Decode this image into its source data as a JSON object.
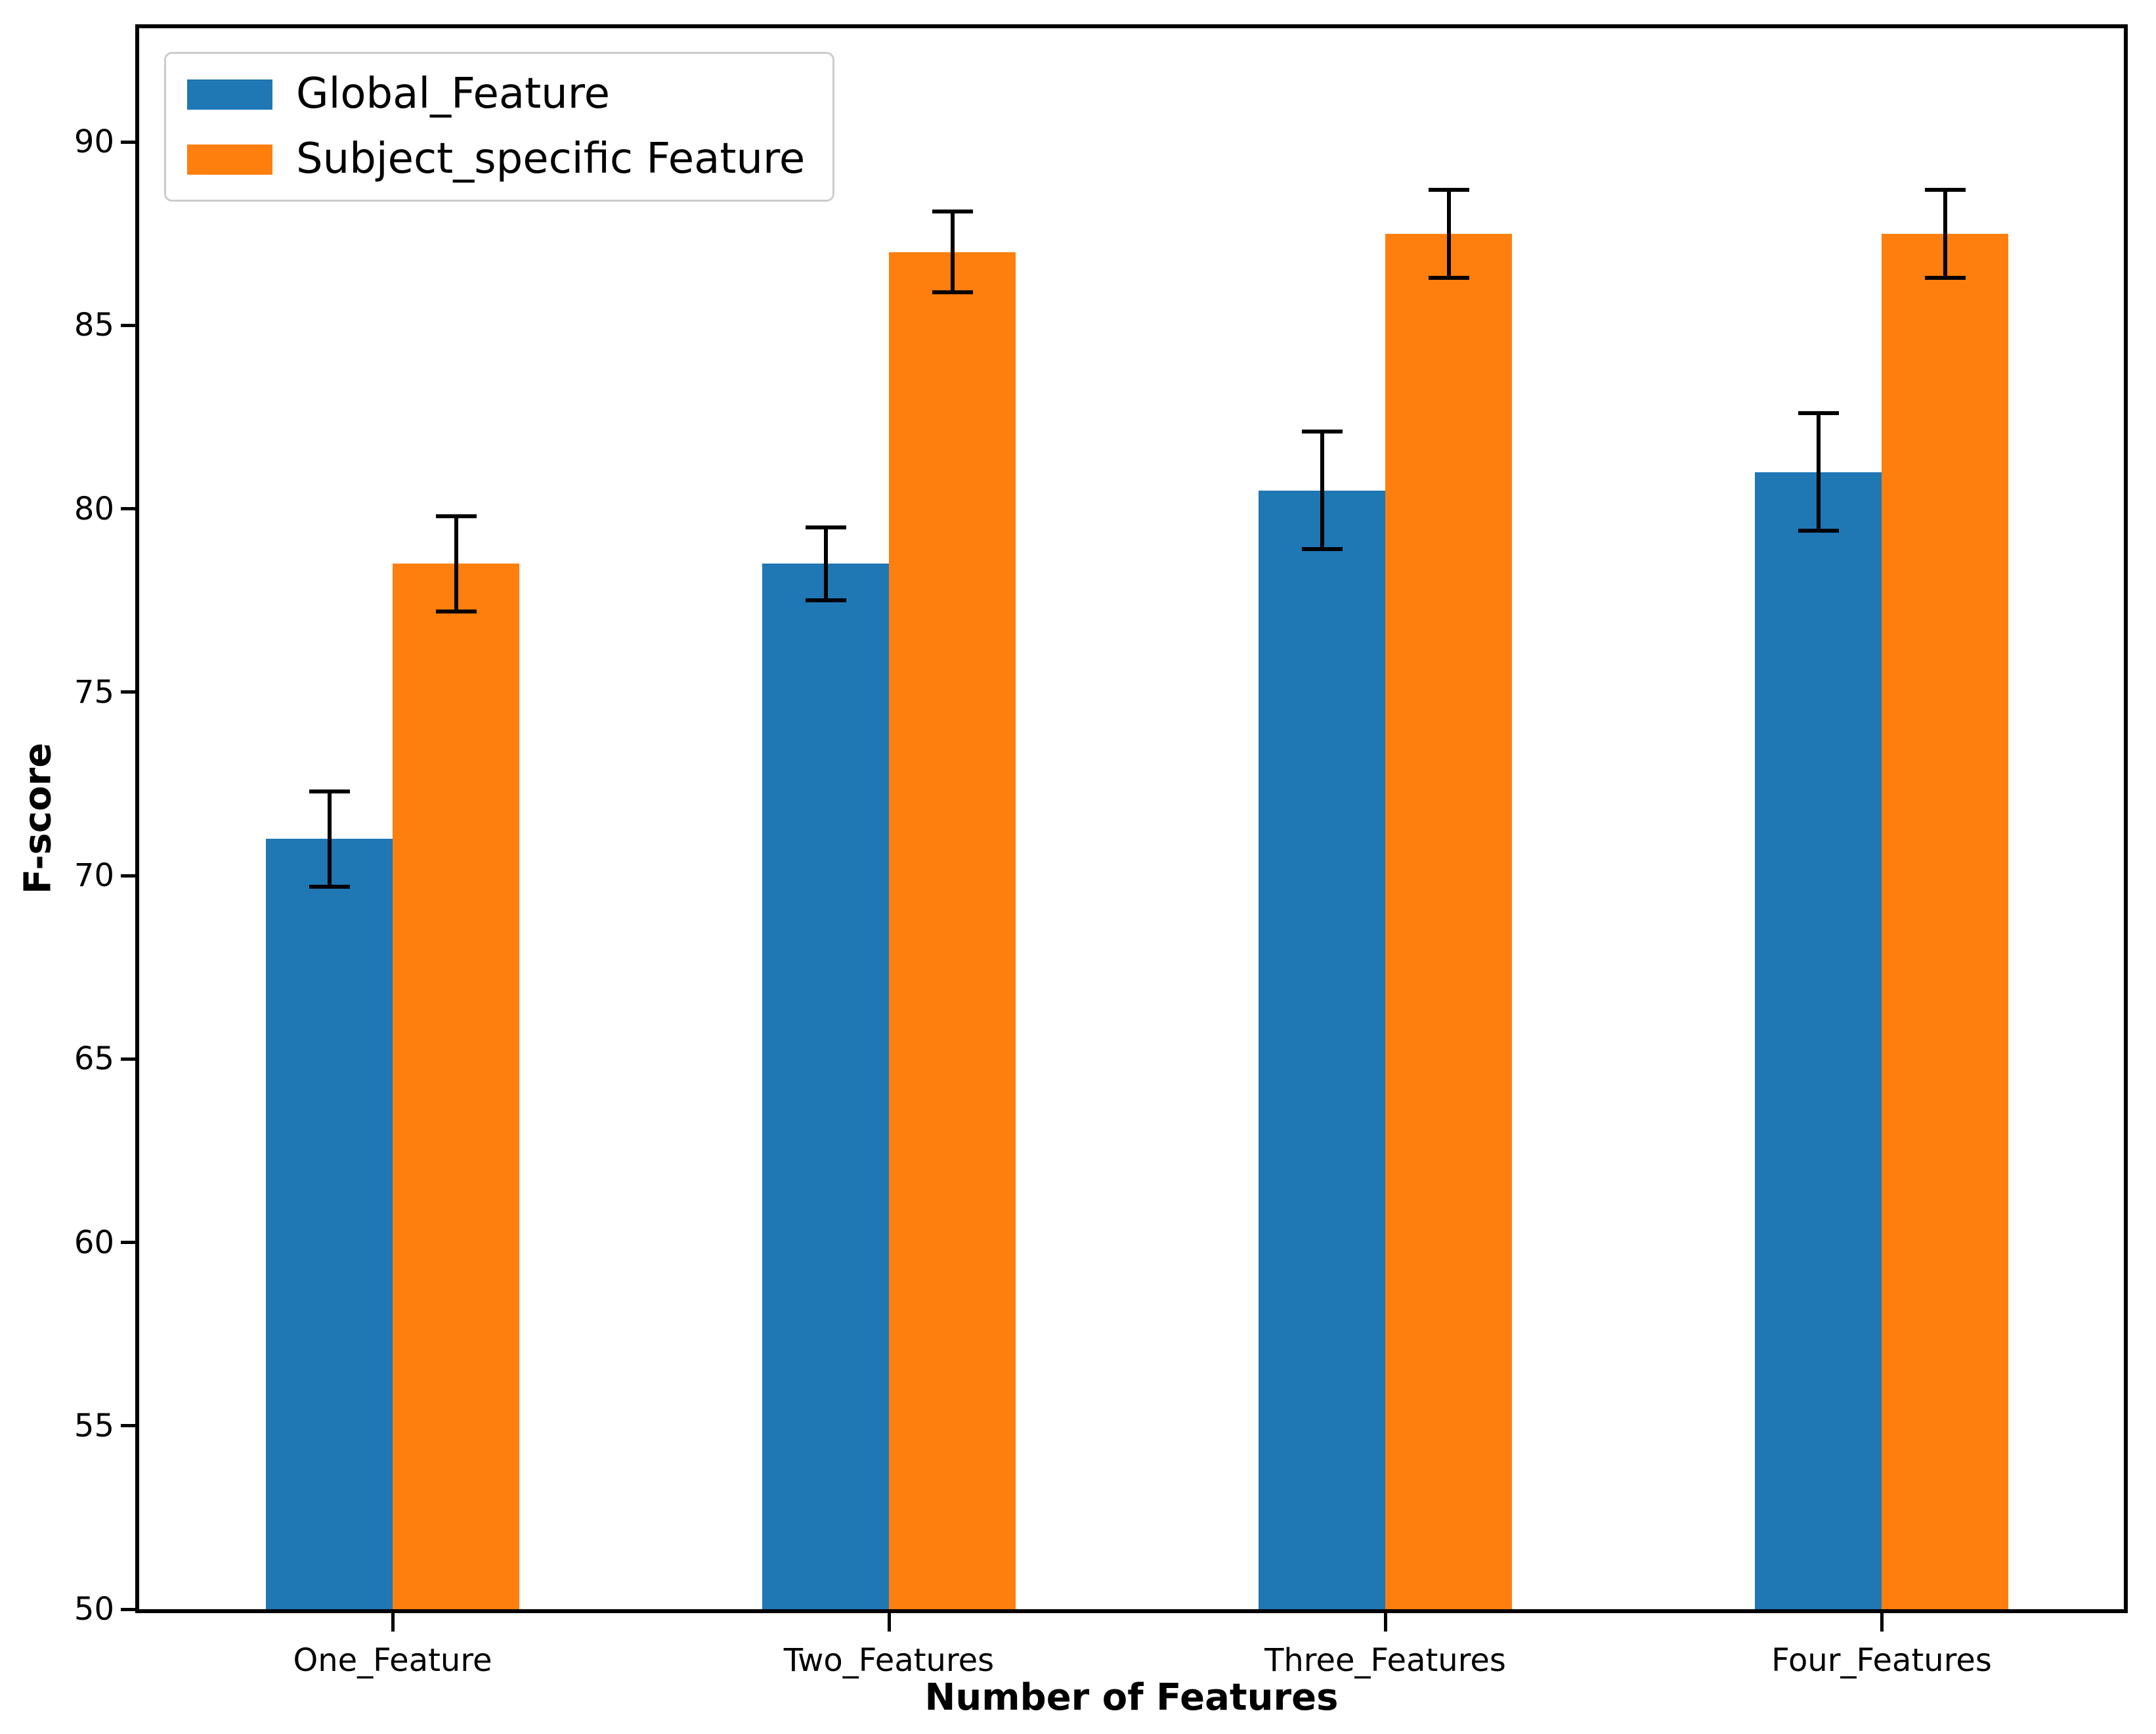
{
  "chart_data": {
    "type": "bar",
    "title": "",
    "xlabel": "Number of Features",
    "ylabel": "F-score",
    "categories": [
      "One_Feature",
      "Two_Features",
      "Three_Features",
      "Four_Features"
    ],
    "series": [
      {
        "name": "Global_Feature",
        "color": "#1f77b4",
        "values": [
          71,
          78.5,
          80.5,
          81
        ],
        "errors": [
          1.3,
          1.0,
          1.6,
          1.6
        ]
      },
      {
        "name": "Subject_specific Feature",
        "color": "#ff7f0e",
        "values": [
          78.5,
          87,
          87.5,
          87.5
        ],
        "errors": [
          1.3,
          1.1,
          1.2,
          1.2
        ]
      }
    ],
    "ylim": [
      50,
      93.1
    ],
    "yticks": [
      50,
      55,
      60,
      65,
      70,
      75,
      80,
      85,
      90
    ],
    "error_bar_color": "#000000",
    "legend_position": "upper left",
    "grid": false,
    "error_bars": true
  }
}
